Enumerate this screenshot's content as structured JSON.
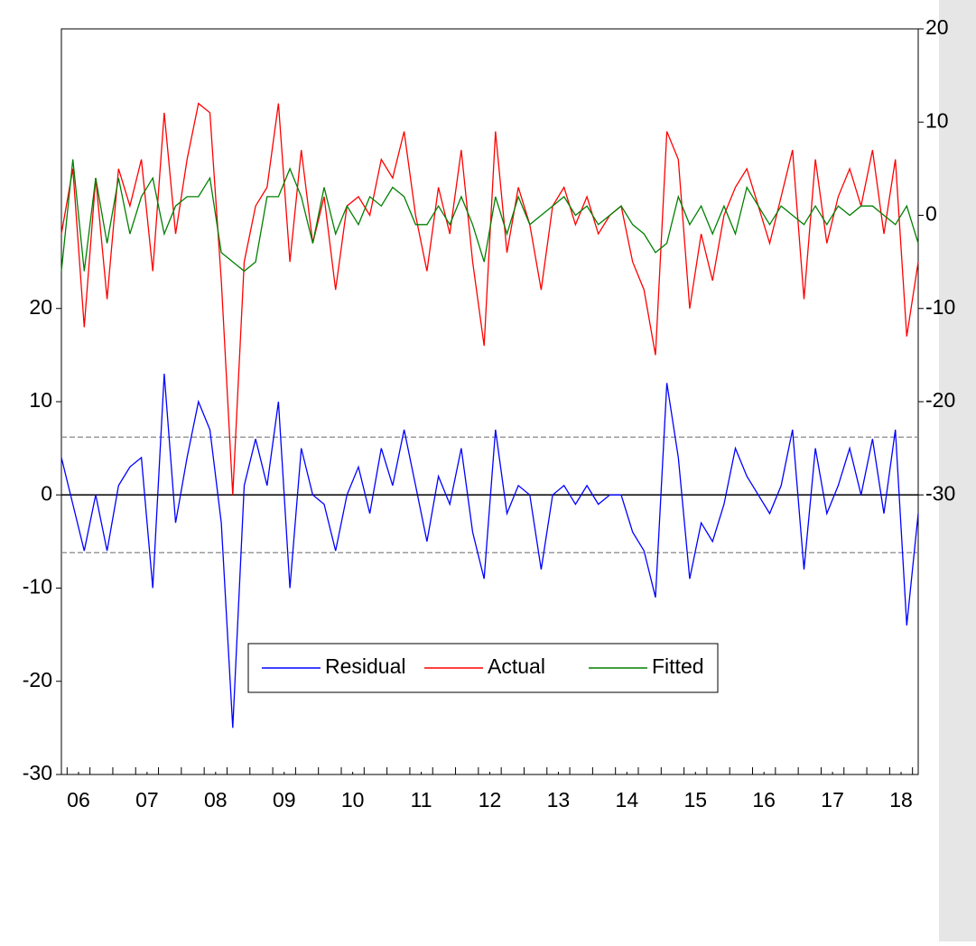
{
  "chart_data": {
    "type": "line",
    "x": [
      2006.25,
      2006.4167,
      2006.5833,
      2006.75,
      2006.9167,
      2007.0833,
      2007.25,
      2007.4167,
      2007.5833,
      2007.75,
      2007.9167,
      2008.0833,
      2008.25,
      2008.4167,
      2008.5833,
      2008.75,
      2008.9167,
      2009.0833,
      2009.25,
      2009.4167,
      2009.5833,
      2009.75,
      2009.9167,
      2010.0833,
      2010.25,
      2010.4167,
      2010.5833,
      2010.75,
      2010.9167,
      2011.0833,
      2011.25,
      2011.4167,
      2011.5833,
      2011.75,
      2011.9167,
      2012.0833,
      2012.25,
      2012.4167,
      2012.5833,
      2012.75,
      2012.9167,
      2013.0833,
      2013.25,
      2013.4167,
      2013.5833,
      2013.75,
      2013.9167,
      2014.0833,
      2014.25,
      2014.4167,
      2014.5833,
      2014.75,
      2014.9167,
      2015.0833,
      2015.25,
      2015.4167,
      2015.5833,
      2015.75,
      2015.9167,
      2016.0833,
      2016.25,
      2016.4167,
      2016.5833,
      2016.75,
      2016.9167,
      2017.0833,
      2017.25,
      2017.4167,
      2017.5833,
      2017.75,
      2017.9167,
      2018.0833,
      2018.25,
      2018.4167,
      2018.5833,
      2018.75
    ],
    "series": [
      {
        "name": "Residual",
        "color": "#0000ff",
        "axis": "y",
        "values": [
          4,
          -1,
          -6,
          0,
          -6,
          1,
          3,
          4,
          -10,
          13,
          -3,
          4,
          10,
          7,
          -3,
          -25,
          1,
          6,
          1,
          10,
          -10,
          5,
          0,
          -1,
          -6,
          0,
          3,
          -2,
          5,
          1,
          7,
          1,
          -5,
          2,
          -1,
          5,
          -4,
          -9,
          7,
          -2,
          1,
          0,
          -8,
          0,
          1,
          -1,
          1,
          -1,
          0,
          0,
          -4,
          -6,
          -11,
          12,
          4,
          -9,
          -3,
          -5,
          -1,
          5,
          2,
          0,
          -2,
          1,
          7,
          -8,
          5,
          -2,
          1,
          5,
          0,
          6,
          -2,
          7,
          -14,
          -2
        ]
      },
      {
        "name": "Actual",
        "color": "#ff0000",
        "axis": "y2",
        "values": [
          -2,
          5,
          -12,
          4,
          -9,
          5,
          1,
          6,
          -6,
          11,
          -2,
          6,
          12,
          11,
          -7,
          -30,
          -5,
          1,
          3,
          12,
          -5,
          7,
          -3,
          2,
          -8,
          1,
          2,
          0,
          6,
          4,
          9,
          0,
          -6,
          3,
          -2,
          7,
          -5,
          -14,
          9,
          -4,
          3,
          -1,
          -8,
          1,
          3,
          -1,
          2,
          -2,
          0,
          1,
          -5,
          -8,
          -15,
          9,
          6,
          -10,
          -2,
          -7,
          0,
          3,
          5,
          1,
          -3,
          2,
          7,
          -9,
          6,
          -3,
          2,
          5,
          1,
          7,
          -2,
          6,
          -13,
          -5
        ]
      },
      {
        "name": "Fitted",
        "color": "#008000",
        "axis": "y2",
        "values": [
          -6,
          6,
          -6,
          4,
          -3,
          4,
          -2,
          2,
          4,
          -2,
          1,
          2,
          2,
          4,
          -4,
          -5,
          -6,
          -5,
          2,
          2,
          5,
          2,
          -3,
          3,
          -2,
          1,
          -1,
          2,
          1,
          3,
          2,
          -1,
          -1,
          1,
          -1,
          2,
          -1,
          -5,
          2,
          -2,
          2,
          -1,
          0,
          1,
          2,
          0,
          1,
          -1,
          0,
          1,
          -1,
          -2,
          -4,
          -3,
          2,
          -1,
          1,
          -2,
          1,
          -2,
          3,
          1,
          -1,
          1,
          0,
          -1,
          1,
          -1,
          1,
          0,
          1,
          1,
          0,
          -1,
          1,
          -3
        ]
      }
    ],
    "xlim": [
      2006.25,
      2018.75
    ],
    "xticks": [
      {
        "value": 2006.5,
        "label": "06"
      },
      {
        "value": 2007.5,
        "label": "07"
      },
      {
        "value": 2008.5,
        "label": "08"
      },
      {
        "value": 2009.5,
        "label": "09"
      },
      {
        "value": 2010.5,
        "label": "10"
      },
      {
        "value": 2011.5,
        "label": "11"
      },
      {
        "value": 2012.5,
        "label": "12"
      },
      {
        "value": 2013.5,
        "label": "13"
      },
      {
        "value": 2014.5,
        "label": "14"
      },
      {
        "value": 2015.5,
        "label": "15"
      },
      {
        "value": 2016.5,
        "label": "16"
      },
      {
        "value": 2017.5,
        "label": "17"
      },
      {
        "value": 2018.5,
        "label": "18"
      }
    ],
    "ylim": [
      -30,
      50
    ],
    "yticks": [
      -30,
      -20,
      -10,
      0,
      10,
      20
    ],
    "y2lim": [
      -60,
      20
    ],
    "y2ticks": [
      -30,
      -20,
      -10,
      0,
      10,
      20
    ],
    "std_error_band": [
      -6.2,
      6.2
    ],
    "legend": "bottom"
  }
}
